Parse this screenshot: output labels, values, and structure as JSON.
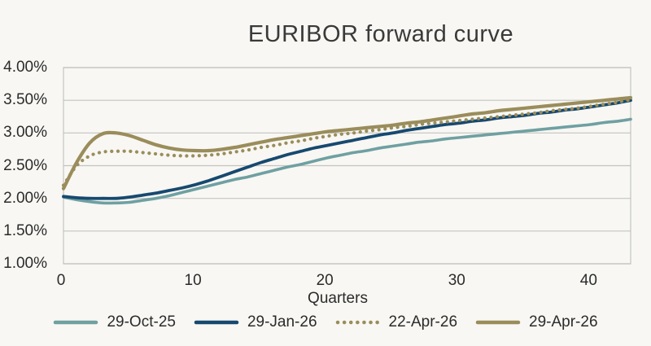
{
  "page": {
    "background": "#F8F7F3"
  },
  "colors": {
    "grid": "#C4C3C0",
    "axis_text": "#2B2B2B",
    "title_text": "#3A3A3A",
    "teal": "#6FA0A2",
    "dark_blue": "#17496F",
    "olive": "#9A8D5B"
  },
  "chart_data": {
    "type": "line",
    "title": "EURIBOR forward curve",
    "xlabel": "Quarters",
    "ylabel": "",
    "xlim": [
      0,
      43
    ],
    "ylim": [
      1.0,
      4.0
    ],
    "grid": "horizontal gridlines, full plot border, no vertical gridlines",
    "legend_position": "bottom",
    "x_ticks": [
      0,
      10,
      20,
      30,
      40
    ],
    "y_ticks": [
      {
        "value": 4.0,
        "label": "4.00%"
      },
      {
        "value": 3.5,
        "label": "3.50%"
      },
      {
        "value": 3.0,
        "label": "3.00%"
      },
      {
        "value": 2.5,
        "label": "2.50%"
      },
      {
        "value": 2.0,
        "label": "2.00%"
      },
      {
        "value": 1.5,
        "label": "1.50%"
      },
      {
        "value": 1.0,
        "label": "1.00%"
      }
    ],
    "x": [
      0,
      1,
      2,
      3,
      4,
      5,
      6,
      7,
      8,
      9,
      10,
      11,
      12,
      13,
      14,
      15,
      16,
      17,
      18,
      19,
      20,
      21,
      22,
      23,
      24,
      25,
      26,
      27,
      28,
      29,
      30,
      31,
      32,
      33,
      34,
      35,
      36,
      37,
      38,
      39,
      40,
      41,
      42,
      43
    ],
    "series": [
      {
        "name": "29-Oct-25",
        "color": "#6FA0A2",
        "style": "solid",
        "width": 3.6,
        "values": [
          2.02,
          1.98,
          1.95,
          1.93,
          1.93,
          1.94,
          1.97,
          2.0,
          2.04,
          2.09,
          2.14,
          2.19,
          2.24,
          2.29,
          2.33,
          2.38,
          2.43,
          2.48,
          2.52,
          2.57,
          2.62,
          2.66,
          2.7,
          2.73,
          2.77,
          2.8,
          2.83,
          2.86,
          2.88,
          2.91,
          2.93,
          2.95,
          2.97,
          2.99,
          3.01,
          3.03,
          3.05,
          3.07,
          3.09,
          3.11,
          3.13,
          3.16,
          3.18,
          3.21
        ]
      },
      {
        "name": "29-Jan-26",
        "color": "#17496F",
        "style": "solid",
        "width": 3.8,
        "values": [
          2.03,
          2.01,
          2.0,
          2.0,
          2.0,
          2.02,
          2.05,
          2.08,
          2.12,
          2.16,
          2.21,
          2.27,
          2.34,
          2.41,
          2.48,
          2.55,
          2.61,
          2.67,
          2.72,
          2.77,
          2.81,
          2.85,
          2.89,
          2.93,
          2.97,
          3.0,
          3.04,
          3.07,
          3.1,
          3.13,
          3.15,
          3.18,
          3.2,
          3.23,
          3.25,
          3.27,
          3.3,
          3.32,
          3.35,
          3.37,
          3.4,
          3.43,
          3.46,
          3.5
        ]
      },
      {
        "name": "22-Apr-26",
        "color": "#9A8D5B",
        "style": "dotted",
        "width": 4.2,
        "values": [
          2.2,
          2.5,
          2.65,
          2.71,
          2.72,
          2.72,
          2.7,
          2.68,
          2.66,
          2.65,
          2.65,
          2.66,
          2.68,
          2.71,
          2.74,
          2.78,
          2.81,
          2.85,
          2.88,
          2.92,
          2.95,
          2.98,
          3.0,
          3.03,
          3.05,
          3.08,
          3.1,
          3.13,
          3.15,
          3.17,
          3.19,
          3.21,
          3.23,
          3.25,
          3.27,
          3.29,
          3.31,
          3.34,
          3.36,
          3.38,
          3.41,
          3.44,
          3.47,
          3.51
        ]
      },
      {
        "name": "29-Apr-26",
        "color": "#9A8D5B",
        "style": "solid",
        "width": 4.2,
        "values": [
          2.15,
          2.55,
          2.85,
          2.99,
          3.0,
          2.96,
          2.89,
          2.82,
          2.77,
          2.74,
          2.73,
          2.73,
          2.75,
          2.78,
          2.82,
          2.86,
          2.9,
          2.93,
          2.96,
          2.99,
          3.02,
          3.04,
          3.06,
          3.08,
          3.1,
          3.12,
          3.15,
          3.17,
          3.2,
          3.23,
          3.26,
          3.29,
          3.31,
          3.34,
          3.36,
          3.38,
          3.4,
          3.42,
          3.44,
          3.46,
          3.48,
          3.5,
          3.52,
          3.54
        ]
      }
    ]
  }
}
